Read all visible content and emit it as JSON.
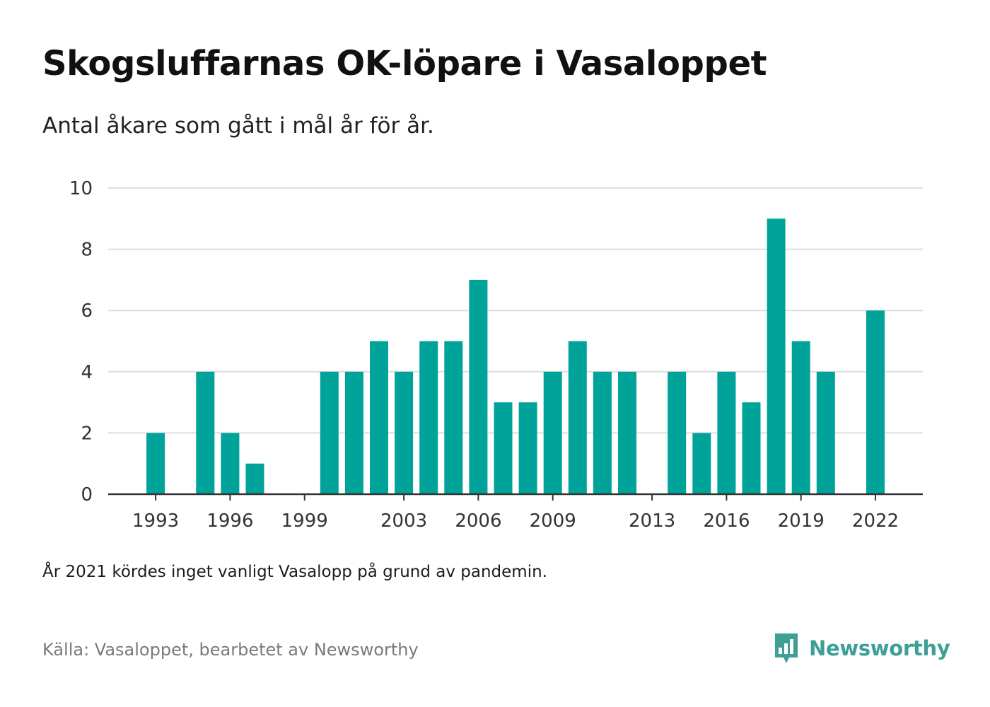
{
  "title": "Skogsluffarnas OK-löpare i Vasaloppet",
  "subtitle": "Antal åkare som gått i mål år för år.",
  "note": "År 2021 kördes inget vanligt Vasalopp på grund av pandemin.",
  "source": "Källa: Vasaloppet, bearbetet av Newsworthy",
  "brand": {
    "name": "Newsworthy",
    "icon": "bar-chart-speech-bubble-icon",
    "color": "#3d9f95"
  },
  "colors": {
    "bar": "#00a39a",
    "grid": "#dddddd",
    "axis": "#333333"
  },
  "chart_data": {
    "type": "bar",
    "title": "",
    "xlabel": "",
    "ylabel": "",
    "ylim": [
      0,
      10
    ],
    "yticks": [
      0,
      2,
      4,
      6,
      8,
      10
    ],
    "xticks": [
      1993,
      1996,
      1999,
      2003,
      2006,
      2009,
      2013,
      2016,
      2019,
      2022
    ],
    "grid": true,
    "categories": [
      1992,
      1993,
      1994,
      1995,
      1996,
      1997,
      1998,
      1999,
      2000,
      2001,
      2002,
      2003,
      2004,
      2005,
      2006,
      2007,
      2008,
      2009,
      2010,
      2011,
      2012,
      2013,
      2014,
      2015,
      2016,
      2017,
      2018,
      2019,
      2020,
      2021,
      2022
    ],
    "values": [
      0,
      2,
      0,
      4,
      2,
      1,
      0,
      0,
      4,
      4,
      5,
      4,
      5,
      5,
      7,
      3,
      3,
      4,
      5,
      4,
      4,
      0,
      4,
      2,
      4,
      3,
      9,
      5,
      4,
      0,
      6
    ]
  }
}
